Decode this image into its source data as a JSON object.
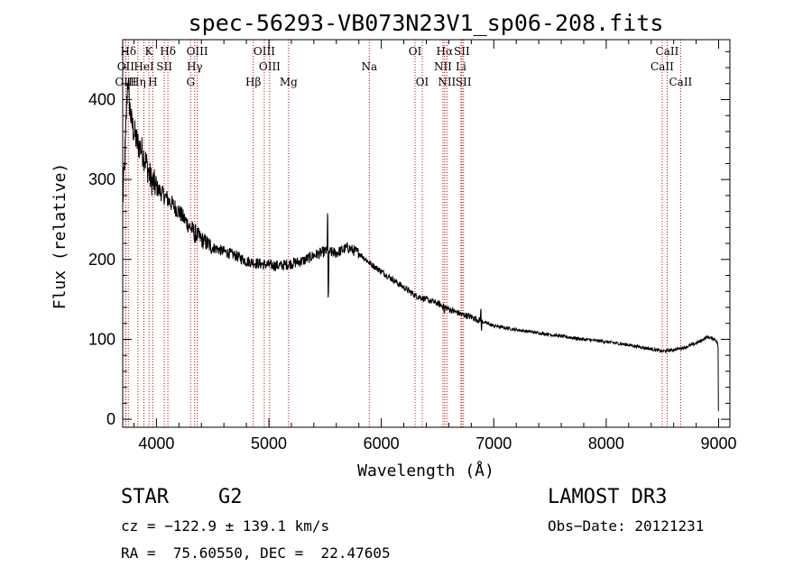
{
  "chart_data": {
    "type": "line",
    "title": "spec-56293-VB073N23V1_sp06-208.fits",
    "xlabel": "Wavelength (Å)",
    "ylabel": "Flux (relative)",
    "xlim": [
      3700,
      9100
    ],
    "ylim": [
      -10,
      475
    ],
    "xticks": [
      4000,
      5000,
      6000,
      7000,
      8000,
      9000
    ],
    "yticks": [
      0,
      100,
      200,
      300,
      400
    ],
    "line_color": "#000000",
    "marker_color": "#cc0000",
    "spectrum_anchors": [
      [
        3700,
        270
      ],
      [
        3720,
        330
      ],
      [
        3745,
        430
      ],
      [
        3760,
        395
      ],
      [
        3780,
        370
      ],
      [
        3800,
        360
      ],
      [
        3830,
        345
      ],
      [
        3860,
        340
      ],
      [
        3900,
        325
      ],
      [
        3950,
        300
      ],
      [
        4000,
        290
      ],
      [
        4100,
        275
      ],
      [
        4200,
        260
      ],
      [
        4300,
        240
      ],
      [
        4400,
        225
      ],
      [
        4500,
        215
      ],
      [
        4600,
        210
      ],
      [
        4700,
        205
      ],
      [
        4800,
        198
      ],
      [
        4900,
        195
      ],
      [
        5000,
        193
      ],
      [
        5100,
        192
      ],
      [
        5200,
        195
      ],
      [
        5300,
        198
      ],
      [
        5400,
        205
      ],
      [
        5500,
        210
      ],
      [
        5600,
        208
      ],
      [
        5700,
        215
      ],
      [
        5800,
        208
      ],
      [
        5900,
        195
      ],
      [
        6000,
        185
      ],
      [
        6100,
        175
      ],
      [
        6200,
        165
      ],
      [
        6300,
        155
      ],
      [
        6400,
        150
      ],
      [
        6500,
        145
      ],
      [
        6600,
        138
      ],
      [
        6700,
        132
      ],
      [
        6800,
        128
      ],
      [
        6900,
        122
      ],
      [
        7000,
        117
      ],
      [
        7200,
        112
      ],
      [
        7400,
        108
      ],
      [
        7600,
        104
      ],
      [
        7800,
        100
      ],
      [
        8000,
        97
      ],
      [
        8200,
        93
      ],
      [
        8400,
        88
      ],
      [
        8500,
        85
      ],
      [
        8600,
        87
      ],
      [
        8700,
        90
      ],
      [
        8800,
        95
      ],
      [
        8900,
        103
      ],
      [
        8970,
        100
      ],
      [
        8990,
        95
      ]
    ],
    "spectrum_features": [
      [
        5528,
        -55
      ],
      [
        5533,
        -35
      ],
      [
        5522,
        45
      ],
      [
        6884,
        15
      ],
      [
        6890,
        -10
      ],
      [
        6560,
        -8
      ],
      [
        4340,
        -10
      ],
      [
        4102,
        -8
      ]
    ],
    "line_markers": [
      {
        "label": "Hδ",
        "x": 3750,
        "row": 0
      },
      {
        "label": "K",
        "x": 3933,
        "row": 0
      },
      {
        "label": "Hδ",
        "x": 4102,
        "row": 0
      },
      {
        "label": "OIII",
        "x": 4363,
        "row": 0
      },
      {
        "label": "OIII",
        "x": 4959,
        "row": 0
      },
      {
        "label": "OI",
        "x": 6300,
        "row": 0
      },
      {
        "label": "Hα",
        "x": 6563,
        "row": 0
      },
      {
        "label": "SII",
        "x": 6716,
        "row": 0
      },
      {
        "label": "CaII",
        "x": 8542,
        "row": 0
      },
      {
        "label": "OII",
        "x": 3727,
        "row": 1
      },
      {
        "label": "HeI",
        "x": 3889,
        "row": 1
      },
      {
        "label": "SII",
        "x": 4070,
        "row": 1
      },
      {
        "label": "Hγ",
        "x": 4340,
        "row": 1
      },
      {
        "label": "OIII",
        "x": 5007,
        "row": 1
      },
      {
        "label": "Na",
        "x": 5893,
        "row": 1
      },
      {
        "label": "NII",
        "x": 6548,
        "row": 1
      },
      {
        "label": "Li",
        "x": 6708,
        "row": 1
      },
      {
        "label": "CaII",
        "x": 8498,
        "row": 1
      },
      {
        "label": "OIII",
        "x": 3727,
        "row": 2
      },
      {
        "label": "Hη",
        "x": 3835,
        "row": 2
      },
      {
        "label": "H",
        "x": 3968,
        "row": 2
      },
      {
        "label": "G",
        "x": 4304,
        "row": 2
      },
      {
        "label": "Hβ",
        "x": 4861,
        "row": 2
      },
      {
        "label": "Mg",
        "x": 5175,
        "row": 2
      },
      {
        "label": "OI",
        "x": 6364,
        "row": 2
      },
      {
        "label": "NII",
        "x": 6583,
        "row": 2
      },
      {
        "label": "SII",
        "x": 6731,
        "row": 2
      },
      {
        "label": "CaII",
        "x": 8662,
        "row": 2
      }
    ]
  },
  "info": {
    "class_label": "STAR",
    "subclass": "G2",
    "cz": "cz = −122.9 ± 139.1 km/s",
    "radec": "RA =  75.60550, DEC =  22.47605",
    "survey": "LAMOST DR3",
    "obs_date": "Obs−Date: 20121231"
  }
}
